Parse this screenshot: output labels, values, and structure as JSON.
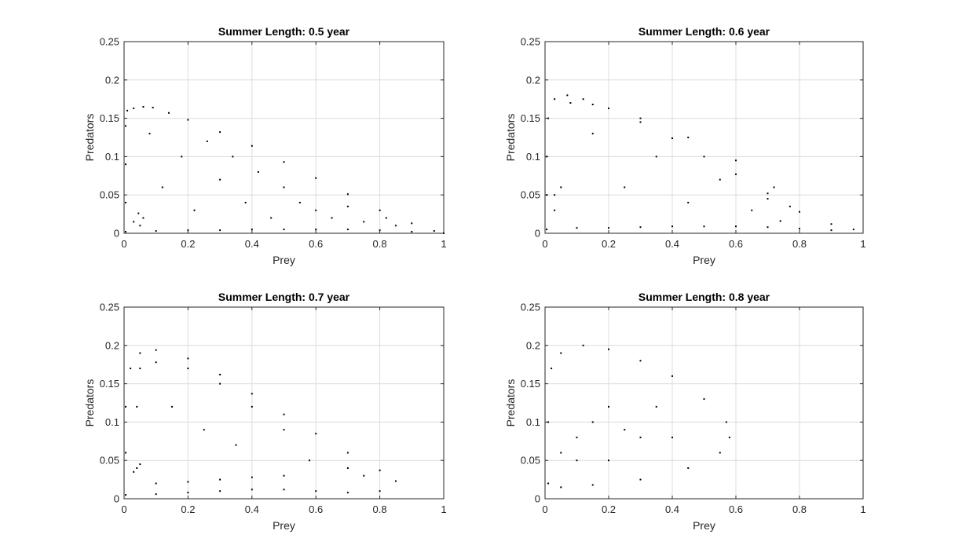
{
  "colors": {
    "points": "#000000",
    "grid": "#dcdcdc",
    "axis": "#262626",
    "background": "#ffffff"
  },
  "chart_data": [
    {
      "type": "scatter",
      "title": "Summer Length: 0.5 year",
      "xlabel": "Prey",
      "ylabel": "Predators",
      "xlim": [
        0,
        1
      ],
      "ylim": [
        0,
        0.25
      ],
      "x_ticks": [
        0,
        0.2,
        0.4,
        0.6,
        0.8,
        1
      ],
      "x_tick_labels": [
        "0",
        "0.2",
        "0.4",
        "0.6",
        "0.8",
        "1"
      ],
      "y_ticks": [
        0,
        0.05,
        0.1,
        0.15,
        0.2,
        0.25
      ],
      "y_tick_labels": [
        "0",
        "0.05",
        "0.1",
        "0.15",
        "0.2",
        "0.25"
      ],
      "grid": true,
      "series": [
        {
          "points": [
            [
              0.005,
              0.002
            ],
            [
              0.005,
              0.04
            ],
            [
              0.005,
              0.09
            ],
            [
              0.005,
              0.14
            ],
            [
              0.01,
              0.16
            ],
            [
              0.03,
              0.163
            ],
            [
              0.06,
              0.165
            ],
            [
              0.09,
              0.164
            ],
            [
              0.14,
              0.157
            ],
            [
              0.2,
              0.148
            ],
            [
              0.3,
              0.132
            ],
            [
              0.4,
              0.114
            ],
            [
              0.5,
              0.093
            ],
            [
              0.6,
              0.072
            ],
            [
              0.7,
              0.051
            ],
            [
              0.8,
              0.03
            ],
            [
              0.9,
              0.013
            ],
            [
              0.97,
              0.003
            ],
            [
              1.0,
              0.0
            ],
            [
              0.9,
              0.002
            ],
            [
              0.8,
              0.004
            ],
            [
              0.7,
              0.005
            ],
            [
              0.6,
              0.005
            ],
            [
              0.5,
              0.005
            ],
            [
              0.4,
              0.005
            ],
            [
              0.3,
              0.004
            ],
            [
              0.2,
              0.004
            ],
            [
              0.1,
              0.003
            ],
            [
              0.03,
              0.015
            ],
            [
              0.045,
              0.026
            ],
            [
              0.06,
              0.02
            ],
            [
              0.05,
              0.01
            ],
            [
              0.08,
              0.13
            ],
            [
              0.12,
              0.06
            ],
            [
              0.18,
              0.1
            ],
            [
              0.22,
              0.03
            ],
            [
              0.26,
              0.12
            ],
            [
              0.3,
              0.07
            ],
            [
              0.34,
              0.1
            ],
            [
              0.38,
              0.04
            ],
            [
              0.42,
              0.08
            ],
            [
              0.46,
              0.02
            ],
            [
              0.5,
              0.06
            ],
            [
              0.55,
              0.04
            ],
            [
              0.6,
              0.03
            ],
            [
              0.65,
              0.02
            ],
            [
              0.7,
              0.035
            ],
            [
              0.75,
              0.015
            ],
            [
              0.82,
              0.02
            ],
            [
              0.85,
              0.01
            ]
          ]
        }
      ]
    },
    {
      "type": "scatter",
      "title": "Summer Length: 0.6 year",
      "xlabel": "Prey",
      "ylabel": "Predators",
      "xlim": [
        0,
        1
      ],
      "ylim": [
        0,
        0.25
      ],
      "x_ticks": [
        0,
        0.2,
        0.4,
        0.6,
        0.8,
        1
      ],
      "x_tick_labels": [
        "0",
        "0.2",
        "0.4",
        "0.6",
        "0.8",
        "1"
      ],
      "y_ticks": [
        0,
        0.05,
        0.1,
        0.15,
        0.2,
        0.25
      ],
      "y_tick_labels": [
        "0",
        "0.05",
        "0.1",
        "0.15",
        "0.2",
        "0.25"
      ],
      "grid": true,
      "series": [
        {
          "points": [
            [
              0.005,
              0.005
            ],
            [
              0.005,
              0.05
            ],
            [
              0.005,
              0.1
            ],
            [
              0.01,
              0.15
            ],
            [
              0.03,
              0.175
            ],
            [
              0.07,
              0.18
            ],
            [
              0.12,
              0.175
            ],
            [
              0.2,
              0.163
            ],
            [
              0.3,
              0.145
            ],
            [
              0.4,
              0.124
            ],
            [
              0.5,
              0.1
            ],
            [
              0.6,
              0.077
            ],
            [
              0.7,
              0.052
            ],
            [
              0.8,
              0.028
            ],
            [
              0.9,
              0.012
            ],
            [
              0.97,
              0.005
            ],
            [
              0.9,
              0.004
            ],
            [
              0.8,
              0.006
            ],
            [
              0.7,
              0.008
            ],
            [
              0.6,
              0.009
            ],
            [
              0.5,
              0.009
            ],
            [
              0.4,
              0.009
            ],
            [
              0.3,
              0.008
            ],
            [
              0.2,
              0.007
            ],
            [
              0.1,
              0.007
            ],
            [
              0.74,
              0.016
            ],
            [
              0.77,
              0.035
            ],
            [
              0.72,
              0.06
            ],
            [
              0.6,
              0.095
            ],
            [
              0.45,
              0.125
            ],
            [
              0.3,
              0.15
            ],
            [
              0.15,
              0.168
            ],
            [
              0.08,
              0.17
            ],
            [
              0.15,
              0.13
            ],
            [
              0.25,
              0.06
            ],
            [
              0.35,
              0.1
            ],
            [
              0.45,
              0.04
            ],
            [
              0.55,
              0.07
            ],
            [
              0.65,
              0.03
            ],
            [
              0.7,
              0.045
            ],
            [
              0.03,
              0.05
            ],
            [
              0.05,
              0.06
            ],
            [
              0.03,
              0.03
            ]
          ]
        }
      ]
    },
    {
      "type": "scatter",
      "title": "Summer Length: 0.7 year",
      "xlabel": "Prey",
      "ylabel": "Predators",
      "xlim": [
        0,
        1
      ],
      "ylim": [
        0,
        0.25
      ],
      "x_ticks": [
        0,
        0.2,
        0.4,
        0.6,
        0.8,
        1
      ],
      "x_tick_labels": [
        "0",
        "0.2",
        "0.4",
        "0.6",
        "0.8",
        "1"
      ],
      "y_ticks": [
        0,
        0.05,
        0.1,
        0.15,
        0.2,
        0.25
      ],
      "y_tick_labels": [
        "0",
        "0.05",
        "0.1",
        "0.15",
        "0.2",
        "0.25"
      ],
      "grid": true,
      "series": [
        {
          "points": [
            [
              0.005,
              0.005
            ],
            [
              0.005,
              0.06
            ],
            [
              0.005,
              0.12
            ],
            [
              0.02,
              0.17
            ],
            [
              0.05,
              0.19
            ],
            [
              0.1,
              0.194
            ],
            [
              0.2,
              0.183
            ],
            [
              0.3,
              0.162
            ],
            [
              0.4,
              0.137
            ],
            [
              0.5,
              0.11
            ],
            [
              0.6,
              0.085
            ],
            [
              0.7,
              0.06
            ],
            [
              0.8,
              0.037
            ],
            [
              0.85,
              0.023
            ],
            [
              0.8,
              0.01
            ],
            [
              0.7,
              0.008
            ],
            [
              0.6,
              0.01
            ],
            [
              0.5,
              0.012
            ],
            [
              0.4,
              0.012
            ],
            [
              0.3,
              0.01
            ],
            [
              0.2,
              0.008
            ],
            [
              0.1,
              0.006
            ],
            [
              0.04,
              0.12
            ],
            [
              0.05,
              0.17
            ],
            [
              0.1,
              0.178
            ],
            [
              0.2,
              0.17
            ],
            [
              0.3,
              0.15
            ],
            [
              0.4,
              0.12
            ],
            [
              0.5,
              0.09
            ],
            [
              0.58,
              0.05
            ],
            [
              0.5,
              0.03
            ],
            [
              0.4,
              0.028
            ],
            [
              0.3,
              0.025
            ],
            [
              0.2,
              0.022
            ],
            [
              0.1,
              0.02
            ],
            [
              0.04,
              0.04
            ],
            [
              0.05,
              0.045
            ],
            [
              0.03,
              0.035
            ],
            [
              0.15,
              0.12
            ],
            [
              0.25,
              0.09
            ],
            [
              0.35,
              0.07
            ],
            [
              0.7,
              0.04
            ],
            [
              0.75,
              0.03
            ]
          ]
        }
      ]
    },
    {
      "type": "scatter",
      "title": "Summer Length: 0.8 year",
      "xlabel": "Prey",
      "ylabel": "Predators",
      "xlim": [
        0,
        1
      ],
      "ylim": [
        0,
        0.25
      ],
      "x_ticks": [
        0,
        0.2,
        0.4,
        0.6,
        0.8,
        1
      ],
      "x_tick_labels": [
        "0",
        "0.2",
        "0.4",
        "0.6",
        "0.8",
        "1"
      ],
      "y_ticks": [
        0,
        0.05,
        0.1,
        0.15,
        0.2,
        0.25
      ],
      "y_tick_labels": [
        "0",
        "0.05",
        "0.1",
        "0.15",
        "0.2",
        "0.25"
      ],
      "grid": true,
      "series": [
        {
          "points": [
            [
              0.01,
              0.02
            ],
            [
              0.01,
              0.1
            ],
            [
              0.02,
              0.17
            ],
            [
              0.05,
              0.19
            ],
            [
              0.12,
              0.2
            ],
            [
              0.2,
              0.195
            ],
            [
              0.3,
              0.18
            ],
            [
              0.4,
              0.16
            ],
            [
              0.5,
              0.13
            ],
            [
              0.57,
              0.1
            ],
            [
              0.58,
              0.08
            ],
            [
              0.55,
              0.06
            ],
            [
              0.45,
              0.04
            ],
            [
              0.3,
              0.025
            ],
            [
              0.15,
              0.018
            ],
            [
              0.05,
              0.015
            ],
            [
              0.1,
              0.08
            ],
            [
              0.15,
              0.1
            ],
            [
              0.2,
              0.12
            ],
            [
              0.25,
              0.09
            ],
            [
              0.3,
              0.08
            ],
            [
              0.1,
              0.05
            ],
            [
              0.05,
              0.06
            ],
            [
              0.2,
              0.05
            ],
            [
              0.35,
              0.12
            ],
            [
              0.4,
              0.08
            ]
          ]
        }
      ]
    }
  ]
}
